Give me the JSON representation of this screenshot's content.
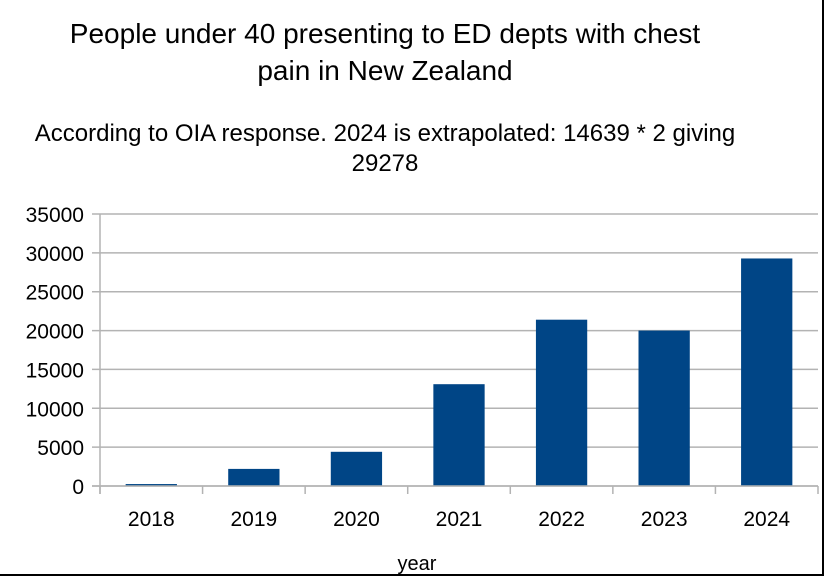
{
  "chart_data": {
    "type": "bar",
    "title": "People under 40 presenting to ED depts with chest pain in New Zealand",
    "subtitle": "According to OIA response. 2024 is extrapolated: 14639 * 2 giving 29278",
    "xlabel": "year",
    "ylabel": "",
    "categories": [
      "2018",
      "2019",
      "2020",
      "2021",
      "2022",
      "2023",
      "2024"
    ],
    "values": [
      250,
      2200,
      4400,
      13100,
      21400,
      20000,
      29278
    ],
    "ylim": [
      0,
      35000
    ],
    "yticks": [
      0,
      5000,
      10000,
      15000,
      20000,
      25000,
      30000,
      35000
    ],
    "grid": true,
    "legend": "none",
    "bar_color": "#004586",
    "grid_color": "#b3b3b3"
  }
}
